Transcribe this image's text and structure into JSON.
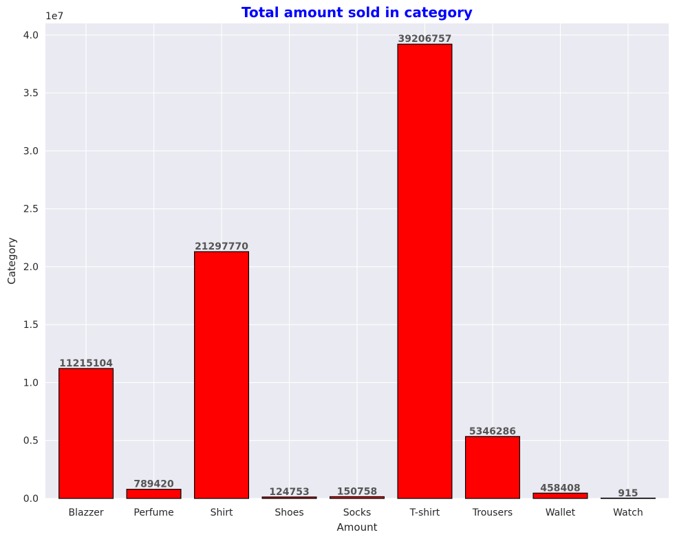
{
  "chart_data": {
    "type": "bar",
    "title": "Total amount sold in category",
    "xlabel": "Amount",
    "ylabel": "Category",
    "offset_label": "1e7",
    "categories": [
      "Blazzer",
      "Perfume",
      "Shirt",
      "Shoes",
      "Socks",
      "T-shirt",
      "Trousers",
      "Wallet",
      "Watch"
    ],
    "values": [
      11215104,
      789420,
      21297770,
      124753,
      150758,
      39206757,
      5346286,
      458408,
      915
    ],
    "data_labels": [
      "11215104",
      "789420",
      "21297770",
      "124753",
      "150758",
      "39206757",
      "5346286",
      "458408",
      "915"
    ],
    "ylim": [
      0,
      41000000
    ],
    "yticks": [
      0,
      5000000,
      10000000,
      15000000,
      20000000,
      25000000,
      30000000,
      35000000,
      40000000
    ],
    "ytick_labels": [
      "0.0",
      "0.5",
      "1.0",
      "1.5",
      "2.0",
      "2.5",
      "3.0",
      "3.5",
      "4.0"
    ],
    "grid": true,
    "colors": {
      "bar": "#ff0000",
      "bar_edge": "#000000",
      "plot_background": "#eaeaf2",
      "grid": "#ffffff",
      "title": "#0000ff",
      "data_label": "#555555",
      "text": "#262626"
    }
  }
}
